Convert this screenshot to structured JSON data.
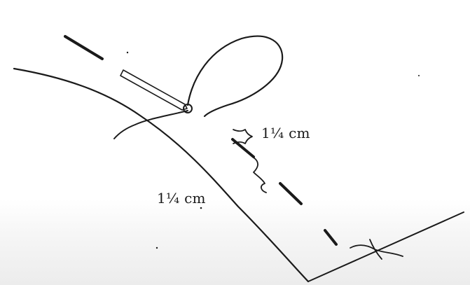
{
  "diagram": {
    "labels": {
      "seam_allowance_upper": "1¼ cm",
      "seam_allowance_lower": "1¼ cm"
    },
    "colors": {
      "ink": "#1a1a1a",
      "paper": "#ffffff"
    }
  }
}
